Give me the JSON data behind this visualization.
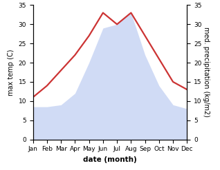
{
  "months": [
    "Jan",
    "Feb",
    "Mar",
    "Apr",
    "May",
    "Jun",
    "Jul",
    "Aug",
    "Sep",
    "Oct",
    "Nov",
    "Dec"
  ],
  "temp": [
    11,
    14,
    18,
    22,
    27,
    33,
    30,
    33,
    27,
    21,
    15,
    13
  ],
  "precip": [
    8.5,
    8.5,
    9,
    12,
    20,
    29,
    30,
    33,
    22,
    14,
    9,
    8
  ],
  "temp_color": "#cc3333",
  "precip_color": "#b8c8f0",
  "precip_alpha": 0.65,
  "xlabel": "date (month)",
  "ylabel_left": "max temp (C)",
  "ylabel_right": "med. precipitation (kg/m2)",
  "ylim": [
    0,
    35
  ],
  "yticks": [
    0,
    5,
    10,
    15,
    20,
    25,
    30,
    35
  ],
  "bg_color": "#ffffff",
  "line_width": 1.6,
  "xlabel_fontsize": 7.5,
  "ylabel_fontsize": 7,
  "tick_fontsize": 6.5
}
